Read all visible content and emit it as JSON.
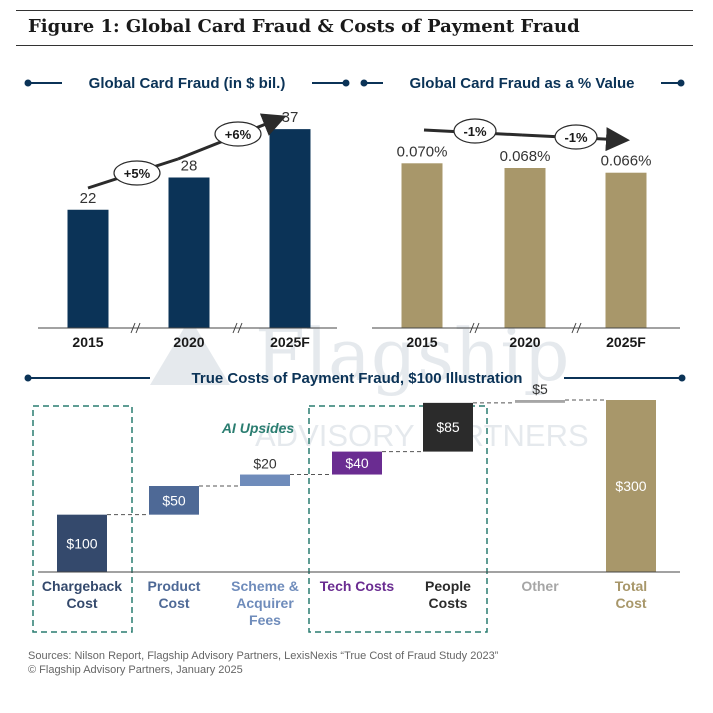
{
  "figure_title": "Figure 1: Global Card Fraud & Costs of Payment Fraud",
  "watermark": {
    "line1": "Flagship",
    "line2": "ADVISORY PARTNERS"
  },
  "colors": {
    "navy": "#0b3357",
    "gold": "#a8976a",
    "teal": "#2a7d70",
    "gray_axis": "#444444"
  },
  "chart_data": [
    {
      "type": "bar",
      "title": "Global Card Fraud (in $ bil.)",
      "categories": [
        "2015",
        "2020",
        "2025F"
      ],
      "values": [
        22,
        28,
        37
      ],
      "value_labels": [
        "22",
        "28",
        "37"
      ],
      "ylim": [
        0,
        40
      ],
      "axis_breaks": true,
      "annotations": [
        "+5%",
        "+6%"
      ],
      "color": "#0b3357"
    },
    {
      "type": "bar",
      "title": "Global Card Fraud as a % Value",
      "categories": [
        "2015",
        "2020",
        "2025F"
      ],
      "values": [
        0.07,
        0.068,
        0.066
      ],
      "value_labels": [
        "0.070%",
        "0.068%",
        "0.066%"
      ],
      "ylim": [
        0,
        0.085
      ],
      "axis_breaks": true,
      "annotations": [
        "-1%",
        "-1%"
      ],
      "color": "#a8976a"
    },
    {
      "type": "waterfall",
      "title": "True Costs of Payment Fraud, $100 Illustration",
      "categories": [
        "Chargeback Cost",
        "Product Cost",
        "Scheme & Acquirer Fees",
        "Tech Costs",
        "People Costs",
        "Other",
        "Total Cost"
      ],
      "category_lines": [
        [
          "Chargeback",
          "Cost"
        ],
        [
          "Product",
          "Cost"
        ],
        [
          "Scheme &",
          "Acquirer",
          "Fees"
        ],
        [
          "Tech Costs"
        ],
        [
          "People",
          "Costs"
        ],
        [
          "Other"
        ],
        [
          "Total",
          "Cost"
        ]
      ],
      "values": [
        100,
        50,
        20,
        40,
        85,
        5,
        300
      ],
      "value_labels": [
        "$100",
        "$50",
        "$20",
        "$40",
        "$85",
        "$5",
        "$300"
      ],
      "is_total": [
        false,
        false,
        false,
        false,
        false,
        false,
        true
      ],
      "colors": [
        "#34496c",
        "#4e6996",
        "#6f8cbb",
        "#6a2c91",
        "#2b2b2b",
        "#a6a6a6",
        "#a8976a"
      ],
      "ylim": [
        0,
        300
      ],
      "highlight_label": "AI Upsides",
      "highlight_groups": [
        [
          0
        ],
        [
          3,
          4
        ]
      ]
    }
  ],
  "sources": {
    "line1": "Sources: Nilson Report, Flagship Advisory Partners, LexisNexis “True Cost of Fraud Study 2023”",
    "line2": "© Flagship Advisory Partners, January 2025"
  }
}
